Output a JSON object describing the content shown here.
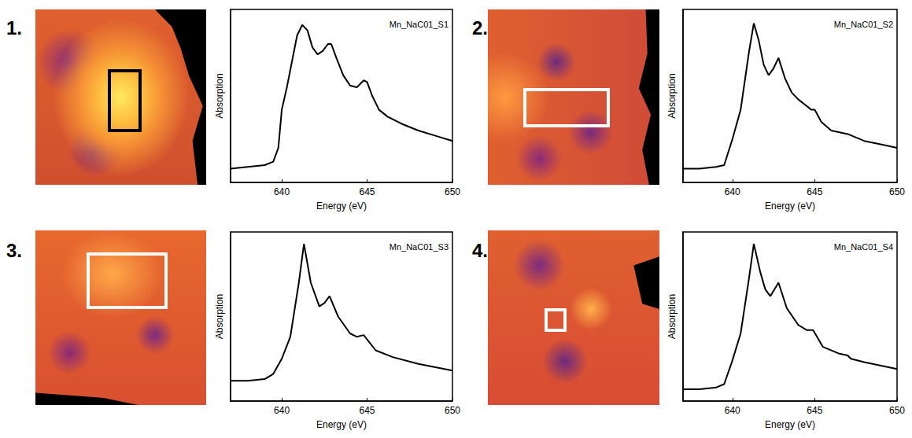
{
  "panel_labels": [
    "1.",
    "2.",
    "3.",
    "4."
  ],
  "chart_data": [
    {
      "type": "line",
      "title": "Mn_NaC01_S1",
      "x_label": "Energy (eV)",
      "y_label": "Absorption",
      "color": "#000000",
      "x": [
        637,
        638,
        639,
        639.5,
        639.8,
        640.0,
        640.3,
        640.6,
        640.9,
        641.2,
        641.5,
        641.8,
        642.1,
        642.4,
        642.7,
        642.9,
        643.2,
        643.6,
        644.0,
        644.4,
        644.8,
        645.0,
        645.3,
        645.7,
        646.2,
        647,
        648,
        649,
        650
      ],
      "values": [
        0.08,
        0.09,
        0.1,
        0.12,
        0.2,
        0.42,
        0.55,
        0.7,
        0.85,
        0.91,
        0.88,
        0.78,
        0.74,
        0.76,
        0.8,
        0.8,
        0.72,
        0.62,
        0.56,
        0.55,
        0.59,
        0.58,
        0.5,
        0.42,
        0.38,
        0.34,
        0.3,
        0.27,
        0.24
      ],
      "xlim": [
        637,
        650
      ],
      "xticks": [
        640,
        645,
        650
      ],
      "ylim": [
        0,
        1
      ],
      "yticks": [],
      "tick_labels": "x",
      "grid": false
    },
    {
      "type": "line",
      "title": "Mn_NaC01_S2",
      "x_label": "Energy (eV)",
      "y_label": "Absorption",
      "color": "#000000",
      "x": [
        637,
        638,
        639,
        639.5,
        640.0,
        640.5,
        641.0,
        641.3,
        641.6,
        641.9,
        642.2,
        642.5,
        642.8,
        643.2,
        643.6,
        644.0,
        644.4,
        644.8,
        645.0,
        645.4,
        646.0,
        647,
        648,
        649,
        650
      ],
      "values": [
        0.08,
        0.08,
        0.09,
        0.1,
        0.25,
        0.42,
        0.75,
        0.92,
        0.82,
        0.68,
        0.62,
        0.66,
        0.72,
        0.6,
        0.52,
        0.48,
        0.45,
        0.42,
        0.42,
        0.35,
        0.3,
        0.28,
        0.24,
        0.22,
        0.2
      ],
      "xlim": [
        637,
        650
      ],
      "xticks": [
        640,
        645,
        650
      ],
      "ylim": [
        0,
        1
      ],
      "yticks": [],
      "tick_labels": "x",
      "grid": false
    },
    {
      "type": "line",
      "title": "Mn_NaC01_S3",
      "x_label": "Energy (eV)",
      "y_label": "Absorption",
      "color": "#000000",
      "x": [
        637,
        638,
        639,
        639.5,
        640.0,
        640.5,
        641.0,
        641.3,
        641.7,
        642.2,
        642.5,
        642.8,
        643.3,
        644.0,
        644.4,
        644.8,
        645.5,
        646.5,
        648,
        650
      ],
      "values": [
        0.12,
        0.12,
        0.13,
        0.16,
        0.25,
        0.38,
        0.7,
        0.93,
        0.7,
        0.56,
        0.58,
        0.62,
        0.5,
        0.4,
        0.38,
        0.39,
        0.3,
        0.26,
        0.22,
        0.18
      ],
      "xlim": [
        637,
        650
      ],
      "xticks": [
        640,
        645,
        650
      ],
      "ylim": [
        0,
        1
      ],
      "yticks": [],
      "tick_labels": "x",
      "grid": false
    },
    {
      "type": "line",
      "title": "Mn_NaC01_S4",
      "x_label": "Energy (eV)",
      "y_label": "Absorption",
      "color": "#000000",
      "x": [
        637,
        638,
        639,
        639.5,
        640.0,
        640.5,
        641.0,
        641.3,
        641.7,
        642.0,
        642.3,
        642.8,
        643.3,
        644.0,
        644.5,
        644.9,
        645.5,
        646.5,
        647.0,
        647.2,
        648,
        650
      ],
      "values": [
        0.07,
        0.07,
        0.08,
        0.1,
        0.24,
        0.4,
        0.72,
        0.93,
        0.76,
        0.66,
        0.62,
        0.7,
        0.55,
        0.45,
        0.42,
        0.42,
        0.32,
        0.28,
        0.27,
        0.25,
        0.23,
        0.19
      ],
      "xlim": [
        637,
        650
      ],
      "xticks": [
        640,
        645,
        650
      ],
      "ylim": [
        0,
        1
      ],
      "yticks": [],
      "tick_labels": "x",
      "grid": false
    }
  ]
}
